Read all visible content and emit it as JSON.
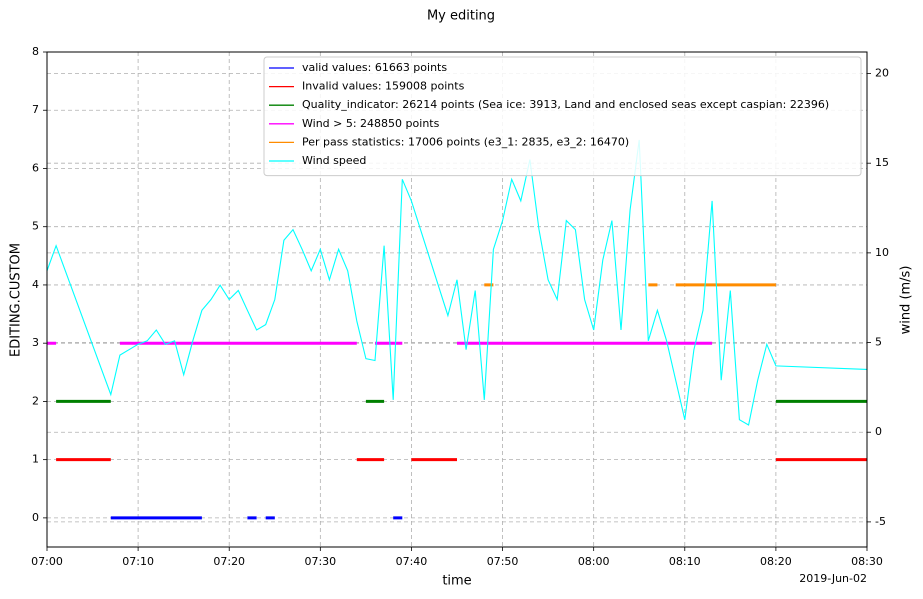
{
  "chart_data": {
    "type": "line",
    "title": "My editing",
    "xlabel": "time",
    "ylabel": "EDITING.CUSTOM",
    "y2label": "wind (m/s)",
    "annotation": "2019-Jun-02",
    "xlim": [
      "07:00",
      "08:30"
    ],
    "xticks": [
      "07:00",
      "07:10",
      "07:20",
      "07:30",
      "07:40",
      "07:50",
      "08:00",
      "08:10",
      "08:20",
      "08:30"
    ],
    "ylim": [
      -0.5,
      8
    ],
    "yticks": [
      0,
      1,
      2,
      3,
      4,
      5,
      6,
      7,
      8
    ],
    "y2lim": [
      -6.4,
      21.2
    ],
    "y2ticks": [
      -5,
      0,
      5,
      10,
      15,
      20
    ],
    "grid": true,
    "legend": "upper center",
    "series": [
      {
        "name": "valid values: 61663 points",
        "color": "#0000ff",
        "x": [
          "07:07",
          "07:17",
          null,
          "07:22",
          "07:23",
          null,
          "07:24",
          "07:25",
          null,
          "07:38",
          "07:39"
        ],
        "values": [
          0,
          0,
          null,
          0,
          0,
          null,
          0,
          0,
          null,
          0,
          0
        ]
      },
      {
        "name": "Invalid values: 159008 points",
        "color": "#ff0000",
        "x": [
          "07:01",
          "07:07",
          null,
          "07:34",
          "07:37",
          null,
          "07:40",
          "07:45",
          null,
          "08:20",
          "08:30"
        ],
        "values": [
          1,
          1,
          null,
          1,
          1,
          null,
          1,
          1,
          null,
          1,
          1
        ]
      },
      {
        "name": "Quality_indicator: 26214 points (Sea ice: 3913, Land and enclosed seas except caspian: 22396)",
        "color": "#008000",
        "x": [
          "07:01",
          "07:07",
          null,
          "07:35",
          "07:37",
          null,
          "08:20",
          "08:30"
        ],
        "values": [
          2,
          2,
          null,
          2,
          2,
          null,
          2,
          2
        ]
      },
      {
        "name": "Wind > 5: 248850 points",
        "color": "#ff00ff",
        "x": [
          "07:00",
          "07:01",
          null,
          "07:08",
          "07:34",
          null,
          "07:36",
          "07:39",
          null,
          "07:45",
          "08:13"
        ],
        "values": [
          3,
          3,
          null,
          3,
          3,
          null,
          3,
          3,
          null,
          3,
          3
        ]
      },
      {
        "name": "Per pass statistics: 17006 points (e3_1: 2835, e3_2: 16470)",
        "color": "#ff8c00",
        "x": [
          "07:48",
          "07:49",
          null,
          "08:06",
          "08:07",
          null,
          "08:09",
          "08:20"
        ],
        "values": [
          4,
          4,
          null,
          4,
          4,
          null,
          4,
          4
        ]
      },
      {
        "name": "Wind speed",
        "color": "#00ffff",
        "axis": "y2",
        "x": [
          "07:00",
          "07:01",
          "07:07",
          "07:08",
          "07:09",
          "07:10",
          "07:11",
          "07:12",
          "07:13",
          "07:14",
          "07:15",
          "07:16",
          "07:17",
          "07:18",
          "07:19",
          "07:20",
          "07:21",
          "07:22",
          "07:23",
          "07:24",
          "07:25",
          "07:26",
          "07:27",
          "07:28",
          "07:29",
          "07:30",
          "07:31",
          "07:32",
          "07:33",
          "07:34",
          "07:35",
          "07:36",
          "07:37",
          "07:38",
          "07:39",
          "07:40",
          "07:44",
          "07:45",
          "07:46",
          "07:47",
          "07:48",
          "07:49",
          "07:50",
          "07:51",
          "07:52",
          "07:53",
          "07:54",
          "07:55",
          "07:56",
          "07:57",
          "07:58",
          "07:59",
          "08:00",
          "08:01",
          "08:02",
          "08:03",
          "08:04",
          "08:05",
          "08:06",
          "08:07",
          "08:08",
          "08:09",
          "08:10",
          "08:11",
          "08:12",
          "08:13",
          "08:14",
          "08:15",
          "08:16",
          "08:17",
          "08:18",
          "08:19",
          "08:20",
          "08:30"
        ],
        "values": [
          9.0,
          10.4,
          2.1,
          4.3,
          4.6,
          4.9,
          5.1,
          5.7,
          4.9,
          5.1,
          3.2,
          5.1,
          6.8,
          7.4,
          8.2,
          7.4,
          7.9,
          6.8,
          5.7,
          6.0,
          7.4,
          10.7,
          11.3,
          10.2,
          9.0,
          10.2,
          8.5,
          10.2,
          9.0,
          6.2,
          4.1,
          4.0,
          10.4,
          1.8,
          14.1,
          12.9,
          6.5,
          8.5,
          4.6,
          7.9,
          1.8,
          10.2,
          11.8,
          14.1,
          12.9,
          15.2,
          11.3,
          8.5,
          7.4,
          11.8,
          11.3,
          7.4,
          5.7,
          9.6,
          11.8,
          5.7,
          12.4,
          16.3,
          5.1,
          6.8,
          5.1,
          2.9,
          0.7,
          4.6,
          6.8,
          12.9,
          2.9,
          7.9,
          0.7,
          0.4,
          2.9,
          4.9,
          3.7,
          3.5
        ]
      }
    ]
  }
}
